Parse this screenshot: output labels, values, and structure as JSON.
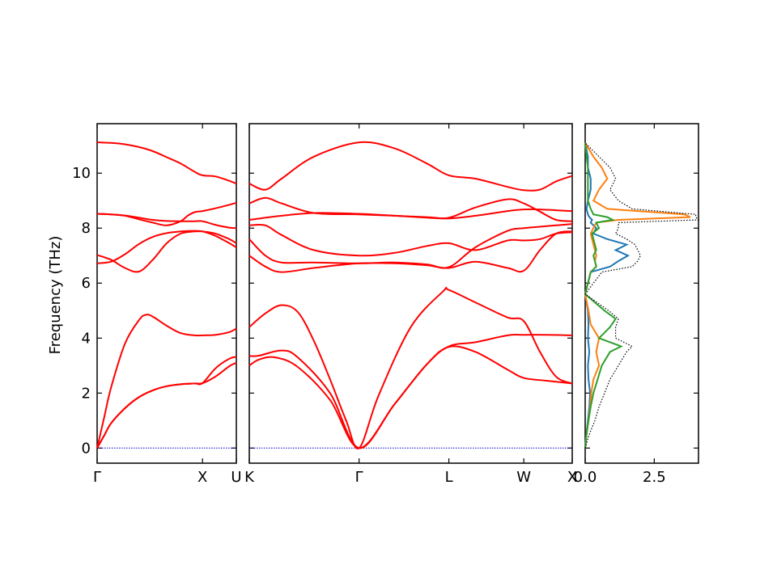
{
  "chart_data": [
    {
      "type": "line",
      "panel": "band-structure-left",
      "ylabel": "Frequency (THz)",
      "ylim": [
        -0.55,
        11.8
      ],
      "y_ticks": [
        0,
        2,
        4,
        6,
        8,
        10
      ],
      "x_tick_labels": [
        "Γ",
        "X",
        "U"
      ],
      "k_points": [
        0.0,
        0.757,
        1.0
      ],
      "colors": {
        "bands": "#ff0000",
        "zero_line": "#0000cc"
      },
      "zero_line": "dotted",
      "bands": [
        {
          "name": "",
          "x": [
            0,
            0.05,
            0.1,
            0.2,
            0.3,
            0.4,
            0.5,
            0.6,
            0.7,
            0.757,
            0.85,
            0.95,
            1.0
          ],
          "y": [
            0,
            0.45,
            0.9,
            1.45,
            1.85,
            2.1,
            2.25,
            2.32,
            2.35,
            2.36,
            2.6,
            2.98,
            3.1
          ]
        },
        {
          "name": "",
          "x": [
            0,
            0.05,
            0.1,
            0.2,
            0.3,
            0.4,
            0.5,
            0.6,
            0.7,
            0.757,
            0.85,
            0.95,
            1.0
          ],
          "y": [
            0,
            0.45,
            0.9,
            1.45,
            1.85,
            2.1,
            2.25,
            2.32,
            2.35,
            2.36,
            2.9,
            3.25,
            3.32
          ]
        },
        {
          "name": "",
          "x": [
            0,
            0.05,
            0.1,
            0.2,
            0.3,
            0.35,
            0.4,
            0.5,
            0.6,
            0.7,
            0.757,
            0.85,
            0.95,
            1.0
          ],
          "y": [
            0,
            1.1,
            2.2,
            3.8,
            4.65,
            4.85,
            4.78,
            4.45,
            4.18,
            4.1,
            4.1,
            4.12,
            4.22,
            4.35
          ]
        },
        {
          "name": "",
          "x": [
            0,
            0.1,
            0.2,
            0.3,
            0.4,
            0.5,
            0.6,
            0.7,
            0.757,
            0.85,
            0.95,
            1.0
          ],
          "y": [
            6.72,
            6.78,
            7.05,
            7.42,
            7.68,
            7.82,
            7.88,
            7.9,
            7.88,
            7.72,
            7.45,
            7.3
          ]
        },
        {
          "name": "",
          "x": [
            0,
            0.1,
            0.2,
            0.3,
            0.4,
            0.5,
            0.6,
            0.7,
            0.757,
            0.85,
            0.95,
            1.0
          ],
          "y": [
            7.02,
            6.85,
            6.55,
            6.42,
            6.85,
            7.45,
            7.8,
            7.88,
            7.88,
            7.8,
            7.6,
            7.45
          ]
        },
        {
          "name": "",
          "x": [
            0,
            0.1,
            0.2,
            0.3,
            0.4,
            0.5,
            0.6,
            0.65,
            0.7,
            0.757,
            0.85,
            0.95,
            1.0
          ],
          "y": [
            8.52,
            8.5,
            8.45,
            8.32,
            8.2,
            8.1,
            8.25,
            8.45,
            8.58,
            8.62,
            8.72,
            8.85,
            8.92
          ]
        },
        {
          "name": "",
          "x": [
            0,
            0.1,
            0.2,
            0.3,
            0.4,
            0.5,
            0.6,
            0.7,
            0.757,
            0.85,
            0.95,
            1.0
          ],
          "y": [
            8.52,
            8.5,
            8.46,
            8.38,
            8.3,
            8.26,
            8.25,
            8.25,
            8.25,
            8.12,
            8.02,
            8.0
          ]
        },
        {
          "name": "",
          "x": [
            0,
            0.1,
            0.2,
            0.3,
            0.4,
            0.5,
            0.6,
            0.7,
            0.757,
            0.85,
            0.95,
            1.0
          ],
          "y": [
            11.12,
            11.1,
            11.05,
            10.95,
            10.8,
            10.58,
            10.35,
            10.05,
            9.92,
            9.88,
            9.72,
            9.62
          ]
        }
      ]
    },
    {
      "type": "line",
      "panel": "band-structure-middle",
      "ylim": [
        -0.55,
        11.8
      ],
      "x_tick_labels": [
        "K",
        "Γ",
        "L",
        "W",
        "X"
      ],
      "k_points": [
        0.0,
        0.34,
        0.618,
        0.85,
        1.0
      ],
      "colors": {
        "bands": "#ff0000",
        "zero_line": "#0000cc"
      },
      "zero_line": "dotted",
      "bands": [
        {
          "name": "",
          "x": [
            0,
            0.03,
            0.08,
            0.15,
            0.25,
            0.34,
            0.45,
            0.55,
            0.618,
            0.7,
            0.8,
            0.85,
            0.92,
            1.0
          ],
          "y": [
            3.0,
            3.22,
            3.3,
            2.95,
            1.75,
            0,
            1.6,
            3.05,
            3.68,
            3.5,
            2.85,
            2.55,
            2.45,
            2.35
          ]
        },
        {
          "name": "",
          "x": [
            0,
            0.03,
            0.1,
            0.15,
            0.25,
            0.34,
            0.45,
            0.55,
            0.618,
            0.7,
            0.8,
            0.85,
            0.92,
            1.0
          ],
          "y": [
            3.35,
            3.36,
            3.55,
            3.3,
            2.0,
            0,
            1.6,
            3.05,
            3.7,
            3.85,
            4.1,
            4.12,
            4.12,
            4.1
          ]
        },
        {
          "name": "",
          "x": [
            0,
            0.05,
            0.1,
            0.15,
            0.2,
            0.25,
            0.3,
            0.34,
            0.4,
            0.5,
            0.6,
            0.618,
            0.7,
            0.8,
            0.85,
            0.9,
            0.95,
            1.0
          ],
          "y": [
            4.4,
            4.9,
            5.2,
            4.95,
            3.9,
            2.5,
            1.0,
            0,
            1.9,
            4.4,
            5.7,
            5.75,
            5.3,
            4.75,
            4.62,
            3.5,
            2.6,
            2.35
          ]
        },
        {
          "name": "",
          "x": [
            0,
            0.05,
            0.1,
            0.2,
            0.34,
            0.45,
            0.55,
            0.618,
            0.7,
            0.8,
            0.85,
            0.9,
            0.95,
            1.0
          ],
          "y": [
            7.0,
            6.6,
            6.4,
            6.55,
            6.72,
            6.72,
            6.65,
            6.55,
            6.78,
            6.55,
            6.45,
            7.2,
            7.8,
            7.88
          ]
        },
        {
          "name": "",
          "x": [
            0,
            0.05,
            0.1,
            0.2,
            0.34,
            0.45,
            0.55,
            0.618,
            0.7,
            0.8,
            0.85,
            0.9,
            0.95,
            1.0
          ],
          "y": [
            7.6,
            7.0,
            6.75,
            6.75,
            6.72,
            6.75,
            6.68,
            6.58,
            7.3,
            7.9,
            8.0,
            8.05,
            8.1,
            8.15
          ]
        },
        {
          "name": "",
          "x": [
            0,
            0.05,
            0.1,
            0.2,
            0.34,
            0.45,
            0.55,
            0.618,
            0.7,
            0.8,
            0.85,
            0.9,
            0.95,
            1.0
          ],
          "y": [
            8.1,
            8.1,
            7.75,
            7.2,
            7.0,
            7.1,
            7.35,
            7.45,
            7.2,
            7.55,
            7.55,
            7.6,
            7.8,
            7.85
          ]
        },
        {
          "name": "",
          "x": [
            0,
            0.05,
            0.1,
            0.2,
            0.34,
            0.45,
            0.55,
            0.618,
            0.7,
            0.8,
            0.85,
            0.9,
            0.95,
            1.0
          ],
          "y": [
            8.3,
            8.38,
            8.45,
            8.55,
            8.52,
            8.45,
            8.38,
            8.35,
            8.45,
            8.62,
            8.68,
            8.68,
            8.65,
            8.62
          ]
        },
        {
          "name": "",
          "x": [
            0,
            0.05,
            0.1,
            0.2,
            0.34,
            0.45,
            0.55,
            0.618,
            0.7,
            0.8,
            0.85,
            0.9,
            0.95,
            1.0
          ],
          "y": [
            8.9,
            9.1,
            8.9,
            8.55,
            8.5,
            8.45,
            8.4,
            8.38,
            8.75,
            9.05,
            8.9,
            8.6,
            8.3,
            8.25
          ]
        },
        {
          "name": "",
          "x": [
            0,
            0.05,
            0.1,
            0.2,
            0.34,
            0.45,
            0.55,
            0.618,
            0.7,
            0.8,
            0.85,
            0.9,
            0.95,
            1.0
          ],
          "y": [
            9.62,
            9.4,
            9.8,
            10.6,
            11.12,
            10.9,
            10.35,
            9.92,
            9.8,
            9.5,
            9.38,
            9.4,
            9.7,
            9.9
          ]
        }
      ]
    },
    {
      "type": "line",
      "panel": "density-of-states",
      "x_tick_labels": [
        "0.0",
        "2.5"
      ],
      "x_ticks": [
        0,
        2.5
      ],
      "xlim": [
        0,
        4.1
      ],
      "ylim": [
        -0.55,
        11.8
      ],
      "colors": {
        "blue": "#1f77b4",
        "orange": "#ff7f0e",
        "green": "#2ca02c",
        "total": "#000000"
      },
      "series": [
        {
          "name": "",
          "color": "blue",
          "y": [
            0.0,
            0.5,
            1.0,
            1.5,
            2.0,
            2.5,
            3.0,
            3.5,
            4.0,
            4.5,
            5.0,
            5.6,
            6.4,
            6.6,
            6.8,
            7.0,
            7.2,
            7.4,
            7.6,
            7.8,
            8.0,
            8.2,
            8.3,
            8.4,
            8.5,
            8.7,
            9.0,
            9.4,
            9.8,
            10.2,
            10.6,
            11.1
          ],
          "x": [
            0.0,
            0.04,
            0.1,
            0.15,
            0.18,
            0.12,
            0.1,
            0.15,
            0.1,
            0.12,
            0.1,
            0.0,
            0.2,
            0.9,
            1.2,
            1.55,
            1.1,
            1.5,
            0.8,
            0.3,
            0.4,
            0.2,
            0.25,
            0.15,
            0.1,
            0.05,
            0.1,
            0.2,
            0.2,
            0.1,
            0.1,
            0.0
          ]
        },
        {
          "name": "",
          "color": "orange",
          "y": [
            0.0,
            0.5,
            1.0,
            1.5,
            2.0,
            2.5,
            3.0,
            3.5,
            4.0,
            4.5,
            5.0,
            5.6,
            6.4,
            6.6,
            6.8,
            7.0,
            7.2,
            7.4,
            7.6,
            7.8,
            8.0,
            8.2,
            8.3,
            8.4,
            8.5,
            8.7,
            9.0,
            9.4,
            9.8,
            10.2,
            10.6,
            11.1
          ],
          "x": [
            0.0,
            0.05,
            0.12,
            0.18,
            0.22,
            0.3,
            0.5,
            0.4,
            0.5,
            0.2,
            0.12,
            0.0,
            0.2,
            0.4,
            0.35,
            0.4,
            0.35,
            0.3,
            0.25,
            0.2,
            0.3,
            0.4,
            1.2,
            3.8,
            3.6,
            0.8,
            0.3,
            0.5,
            0.8,
            0.6,
            0.3,
            0.0
          ]
        },
        {
          "name": "",
          "color": "green",
          "y": [
            0.0,
            0.5,
            1.0,
            1.5,
            2.0,
            2.5,
            3.0,
            3.5,
            3.7,
            4.0,
            4.4,
            4.7,
            5.0,
            5.6,
            6.4,
            6.6,
            6.8,
            7.0,
            7.2,
            7.4,
            7.6,
            7.8,
            8.0,
            8.2,
            8.3,
            8.4,
            8.5,
            8.7,
            9.0,
            9.4,
            9.8,
            10.2,
            10.6,
            11.1
          ],
          "x": [
            0.0,
            0.05,
            0.12,
            0.2,
            0.3,
            0.45,
            0.6,
            0.9,
            1.3,
            0.5,
            0.9,
            1.1,
            0.7,
            0.0,
            0.2,
            0.4,
            0.35,
            0.3,
            0.4,
            0.35,
            0.3,
            0.25,
            0.5,
            0.4,
            1.0,
            0.8,
            0.3,
            0.2,
            0.1,
            0.1,
            0.1,
            0.1,
            0.05,
            0.0
          ]
        },
        {
          "name": "",
          "color": "total",
          "dashed": true,
          "y": [
            0.0,
            0.5,
            1.0,
            1.5,
            2.0,
            2.5,
            3.0,
            3.5,
            3.7,
            4.0,
            4.4,
            4.7,
            5.0,
            5.6,
            6.4,
            6.6,
            6.8,
            7.0,
            7.2,
            7.4,
            7.6,
            7.8,
            8.0,
            8.2,
            8.3,
            8.4,
            8.5,
            8.7,
            9.0,
            9.4,
            9.8,
            10.2,
            10.6,
            11.1
          ],
          "x": [
            0.0,
            0.15,
            0.35,
            0.5,
            0.7,
            0.9,
            1.2,
            1.5,
            1.7,
            1.1,
            1.1,
            1.2,
            0.85,
            0.0,
            0.6,
            1.7,
            1.9,
            2.0,
            1.9,
            1.8,
            1.5,
            1.1,
            1.2,
            1.2,
            4.1,
            4.0,
            4.0,
            1.7,
            1.2,
            0.9,
            1.1,
            0.9,
            0.5,
            0.0
          ]
        }
      ]
    }
  ]
}
